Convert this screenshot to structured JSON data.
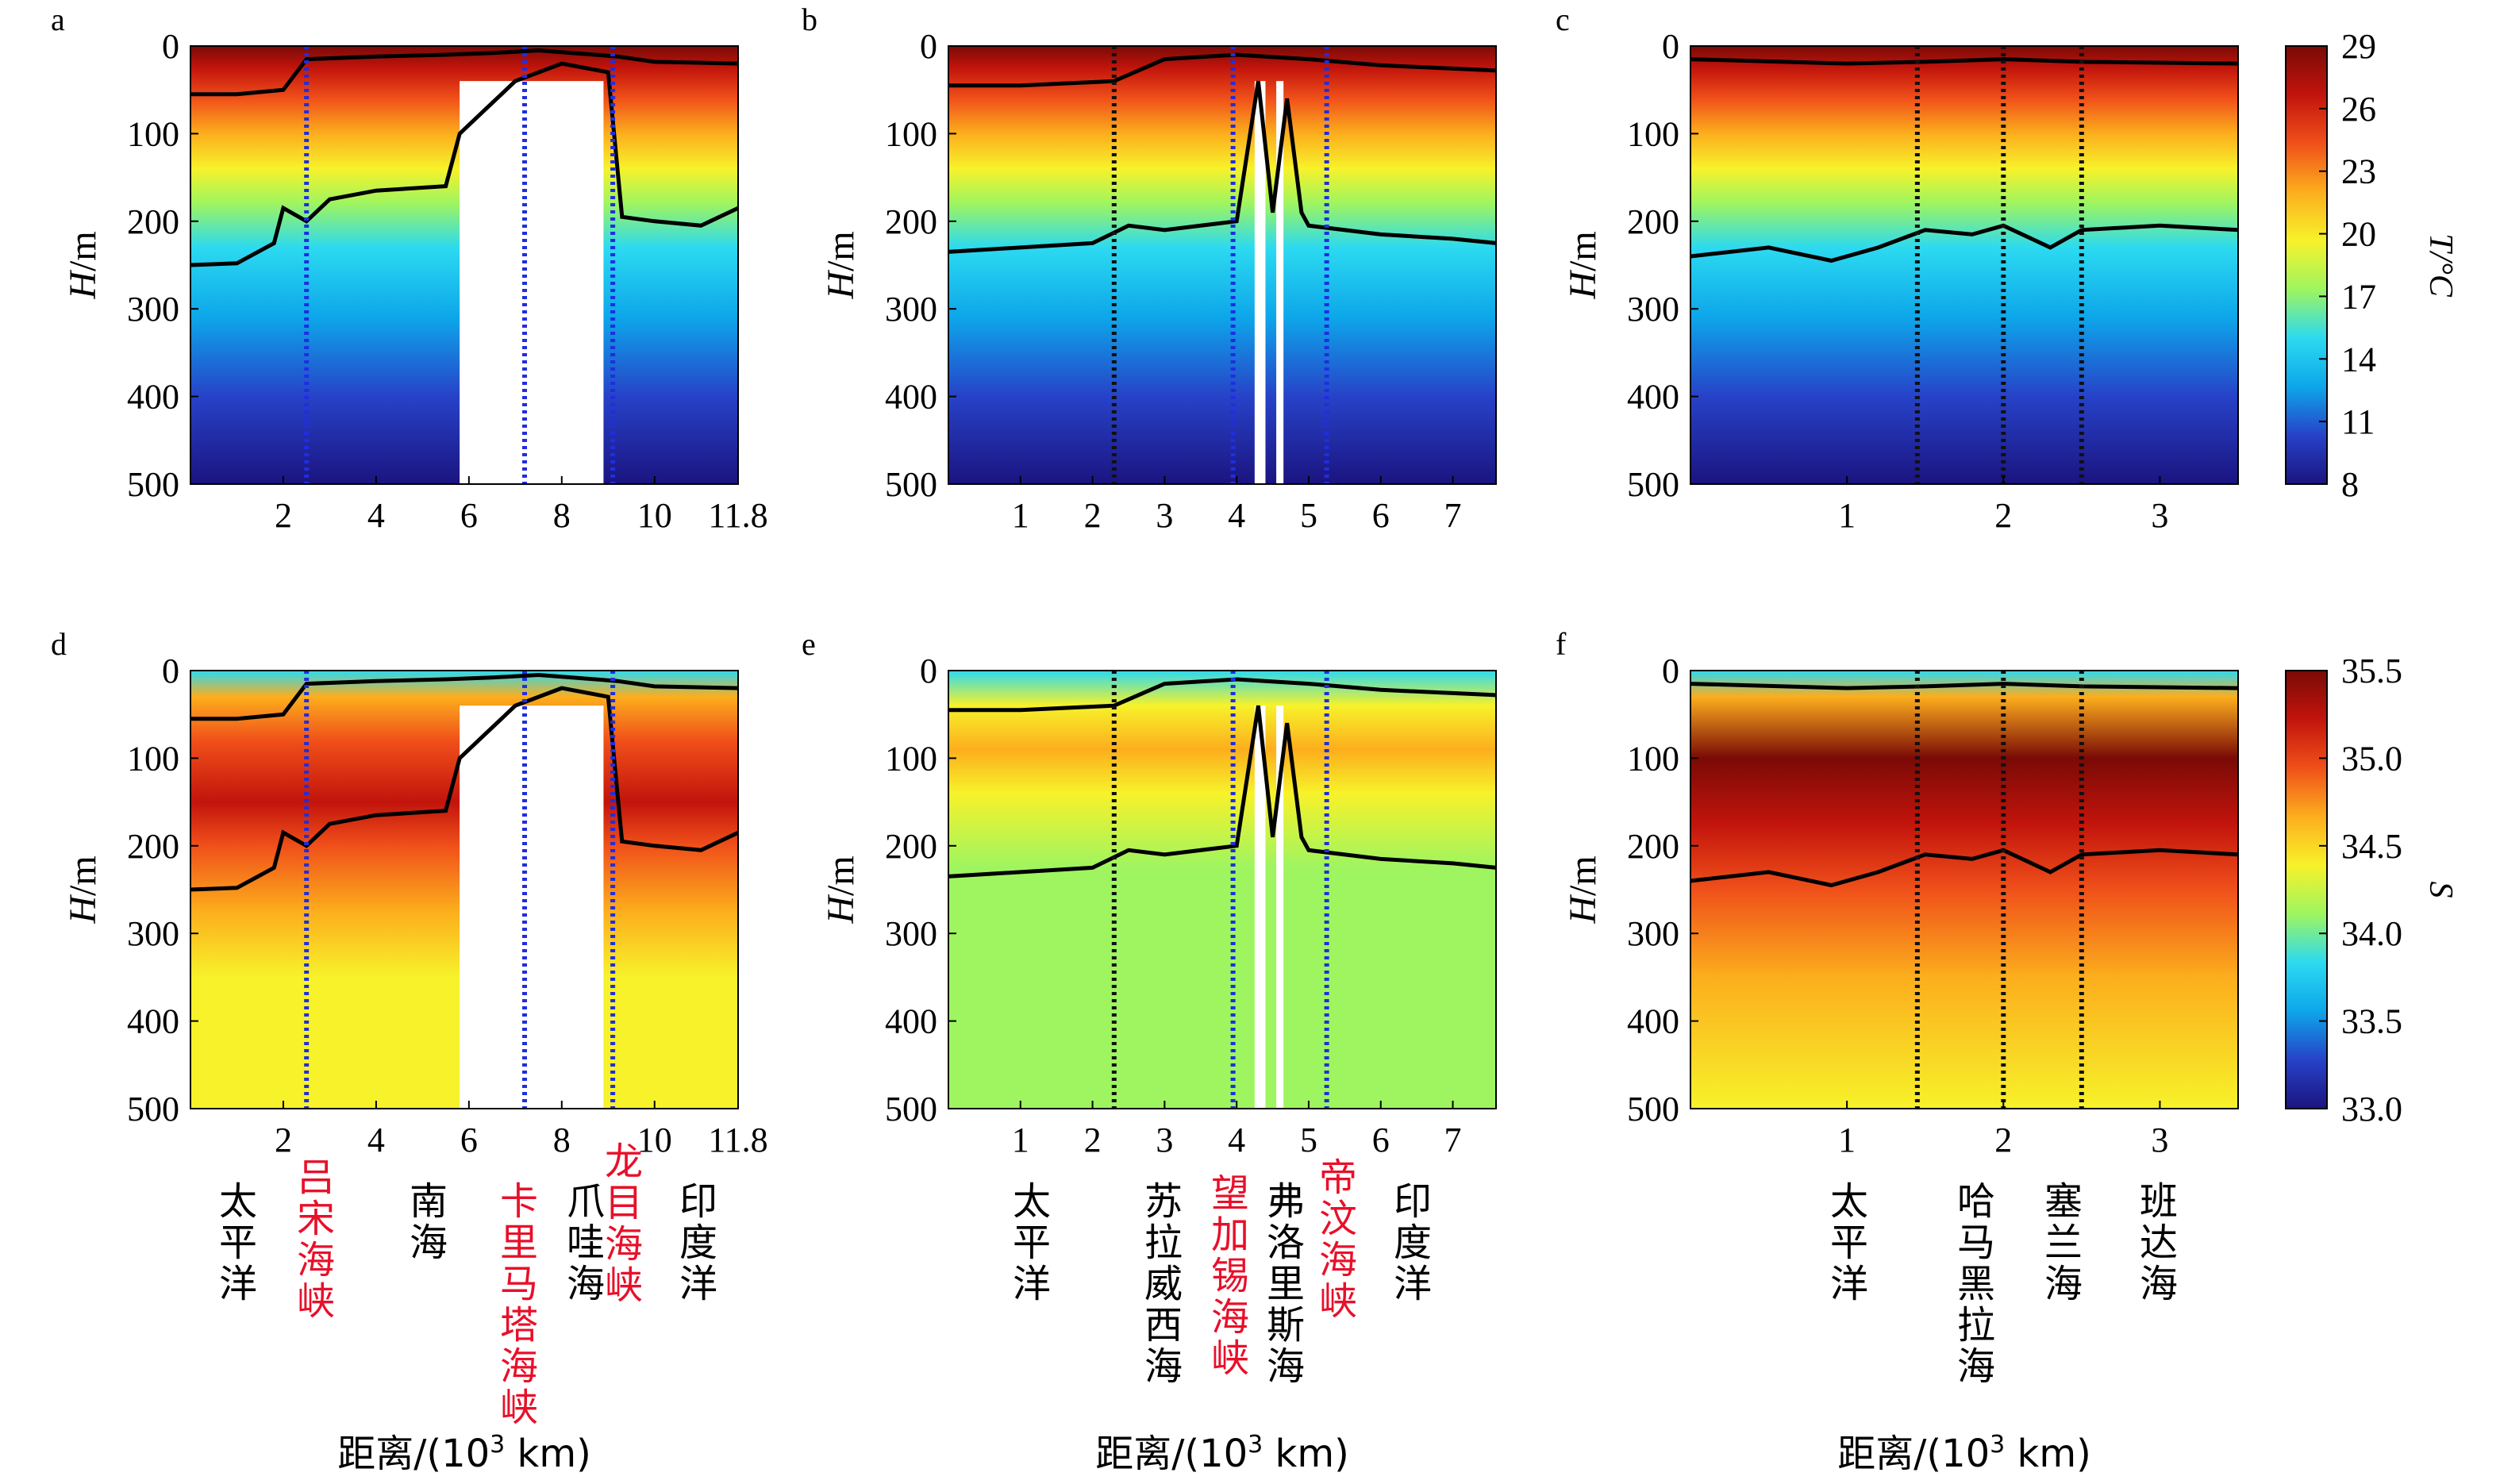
{
  "colors": {
    "temperature_scale": [
      "#1b1480",
      "#2742c8",
      "#0da6ea",
      "#2cdaf0",
      "#9ef560",
      "#f7f22a",
      "#fcae1d",
      "#f0501a",
      "#c2140c",
      "#7a0a06"
    ],
    "salinity_scale": [
      "#1b1480",
      "#2742c8",
      "#0da6ea",
      "#2cdaf0",
      "#9ef560",
      "#f7f22a",
      "#fcae1d",
      "#f0501a",
      "#c2140c",
      "#7a0a06"
    ],
    "strait_line": "#1f2ee0",
    "sea_line": "#111111",
    "isotherm": "#000000",
    "strait_text": "#e8102a"
  },
  "y_ticks": [
    "0",
    "100",
    "200",
    "300",
    "400",
    "500"
  ],
  "chart_data": [
    {
      "panel": "a",
      "type": "heatmap",
      "variable": "temperature",
      "ylabel": "H/m",
      "ylim": [
        500,
        0
      ],
      "xlim": [
        0,
        11.8
      ],
      "x_ticks": [
        "2",
        "4",
        "6",
        "8",
        "10",
        "11.8"
      ],
      "x_tick_values": [
        2,
        4,
        6,
        8,
        10,
        11.8
      ],
      "mld": [
        [
          0,
          55
        ],
        [
          1,
          55
        ],
        [
          2,
          50
        ],
        [
          2.5,
          15
        ],
        [
          4,
          12
        ],
        [
          5.5,
          10
        ],
        [
          6.5,
          8
        ],
        [
          7.5,
          5
        ],
        [
          9.2,
          12
        ],
        [
          10,
          18
        ],
        [
          11.8,
          20
        ]
      ],
      "thermocline": [
        [
          0,
          250
        ],
        [
          1,
          248
        ],
        [
          1.8,
          225
        ],
        [
          2,
          185
        ],
        [
          2.5,
          200
        ],
        [
          3,
          175
        ],
        [
          4,
          165
        ],
        [
          5.5,
          160
        ],
        [
          5.8,
          100
        ],
        [
          6.3,
          75
        ],
        [
          7,
          40
        ],
        [
          8,
          20
        ],
        [
          9,
          30
        ],
        [
          9.3,
          195
        ],
        [
          10,
          200
        ],
        [
          11,
          205
        ],
        [
          11.8,
          185
        ]
      ],
      "separators": [
        {
          "x": 2.5,
          "style": "strait"
        },
        {
          "x": 7.2,
          "style": "strait"
        },
        {
          "x": 9.1,
          "style": "strait"
        }
      ],
      "land": [
        [
          5.8,
          8.9
        ]
      ]
    },
    {
      "panel": "b",
      "type": "heatmap",
      "variable": "temperature",
      "ylabel": "H/m",
      "ylim": [
        500,
        0
      ],
      "xlim": [
        0,
        7.6
      ],
      "x_ticks": [
        "1",
        "2",
        "3",
        "4",
        "5",
        "6",
        "7"
      ],
      "x_tick_values": [
        1,
        2,
        3,
        4,
        5,
        6,
        7
      ],
      "mld": [
        [
          0,
          45
        ],
        [
          1,
          45
        ],
        [
          2.3,
          40
        ],
        [
          3,
          15
        ],
        [
          4,
          10
        ],
        [
          5,
          15
        ],
        [
          6,
          22
        ],
        [
          7.6,
          28
        ]
      ],
      "thermocline": [
        [
          0,
          235
        ],
        [
          1,
          230
        ],
        [
          2,
          225
        ],
        [
          2.5,
          205
        ],
        [
          3,
          210
        ],
        [
          4,
          200
        ],
        [
          4.3,
          40
        ],
        [
          4.5,
          190
        ],
        [
          4.7,
          60
        ],
        [
          4.9,
          190
        ],
        [
          5,
          205
        ],
        [
          6,
          215
        ],
        [
          7,
          220
        ],
        [
          7.6,
          225
        ]
      ],
      "separators": [
        {
          "x": 2.3,
          "style": "sea"
        },
        {
          "x": 3.95,
          "style": "strait"
        },
        {
          "x": 5.25,
          "style": "strait"
        }
      ],
      "land": [
        [
          4.25,
          4.4
        ],
        [
          4.55,
          4.65
        ]
      ]
    },
    {
      "panel": "c",
      "type": "heatmap",
      "variable": "temperature",
      "ylabel": "H/m",
      "ylim": [
        500,
        0
      ],
      "xlim": [
        0,
        3.5
      ],
      "x_ticks": [
        "1",
        "2",
        "3"
      ],
      "x_tick_values": [
        1,
        2,
        3
      ],
      "mld": [
        [
          0,
          15
        ],
        [
          1,
          20
        ],
        [
          1.5,
          18
        ],
        [
          2,
          15
        ],
        [
          2.5,
          18
        ],
        [
          3.5,
          20
        ]
      ],
      "thermocline": [
        [
          0,
          240
        ],
        [
          0.5,
          230
        ],
        [
          0.9,
          245
        ],
        [
          1.2,
          230
        ],
        [
          1.5,
          210
        ],
        [
          1.8,
          215
        ],
        [
          2,
          205
        ],
        [
          2.3,
          230
        ],
        [
          2.5,
          210
        ],
        [
          3,
          205
        ],
        [
          3.5,
          210
        ]
      ],
      "separators": [
        {
          "x": 1.45,
          "style": "sea"
        },
        {
          "x": 2.0,
          "style": "sea"
        },
        {
          "x": 2.5,
          "style": "sea"
        }
      ],
      "land": []
    },
    {
      "panel": "d",
      "type": "heatmap",
      "variable": "salinity",
      "ylabel": "H/m",
      "ylim": [
        500,
        0
      ],
      "xlim": [
        0,
        11.8
      ],
      "x_ticks": [
        "2",
        "4",
        "6",
        "8",
        "10",
        "11.8"
      ],
      "x_tick_values": [
        2,
        4,
        6,
        8,
        10,
        11.8
      ],
      "mld": [
        [
          0,
          55
        ],
        [
          1,
          55
        ],
        [
          2,
          50
        ],
        [
          2.5,
          15
        ],
        [
          4,
          12
        ],
        [
          5.5,
          10
        ],
        [
          6.5,
          8
        ],
        [
          7.5,
          5
        ],
        [
          9.2,
          12
        ],
        [
          10,
          18
        ],
        [
          11.8,
          20
        ]
      ],
      "thermocline": [
        [
          0,
          250
        ],
        [
          1,
          248
        ],
        [
          1.8,
          225
        ],
        [
          2,
          185
        ],
        [
          2.5,
          200
        ],
        [
          3,
          175
        ],
        [
          4,
          165
        ],
        [
          5.5,
          160
        ],
        [
          5.8,
          100
        ],
        [
          6.3,
          75
        ],
        [
          7,
          40
        ],
        [
          8,
          20
        ],
        [
          9,
          30
        ],
        [
          9.3,
          195
        ],
        [
          10,
          200
        ],
        [
          11,
          205
        ],
        [
          11.8,
          185
        ]
      ],
      "separators": [
        {
          "x": 2.5,
          "style": "strait"
        },
        {
          "x": 7.2,
          "style": "strait"
        },
        {
          "x": 9.1,
          "style": "strait"
        }
      ],
      "land": [
        [
          5.8,
          8.9
        ]
      ]
    },
    {
      "panel": "e",
      "type": "heatmap",
      "variable": "salinity",
      "ylabel": "H/m",
      "ylim": [
        500,
        0
      ],
      "xlim": [
        0,
        7.6
      ],
      "x_ticks": [
        "1",
        "2",
        "3",
        "4",
        "5",
        "6",
        "7"
      ],
      "x_tick_values": [
        1,
        2,
        3,
        4,
        5,
        6,
        7
      ],
      "mld": [
        [
          0,
          45
        ],
        [
          1,
          45
        ],
        [
          2.3,
          40
        ],
        [
          3,
          15
        ],
        [
          4,
          10
        ],
        [
          5,
          15
        ],
        [
          6,
          22
        ],
        [
          7.6,
          28
        ]
      ],
      "thermocline": [
        [
          0,
          235
        ],
        [
          1,
          230
        ],
        [
          2,
          225
        ],
        [
          2.5,
          205
        ],
        [
          3,
          210
        ],
        [
          4,
          200
        ],
        [
          4.3,
          40
        ],
        [
          4.5,
          190
        ],
        [
          4.7,
          60
        ],
        [
          4.9,
          190
        ],
        [
          5,
          205
        ],
        [
          6,
          215
        ],
        [
          7,
          220
        ],
        [
          7.6,
          225
        ]
      ],
      "separators": [
        {
          "x": 2.3,
          "style": "sea"
        },
        {
          "x": 3.95,
          "style": "strait"
        },
        {
          "x": 5.25,
          "style": "strait"
        }
      ],
      "land": [
        [
          4.25,
          4.4
        ],
        [
          4.55,
          4.65
        ]
      ]
    },
    {
      "panel": "f",
      "type": "heatmap",
      "variable": "salinity",
      "ylabel": "H/m",
      "ylim": [
        500,
        0
      ],
      "xlim": [
        0,
        3.5
      ],
      "x_ticks": [
        "1",
        "2",
        "3"
      ],
      "x_tick_values": [
        1,
        2,
        3
      ],
      "mld": [
        [
          0,
          15
        ],
        [
          1,
          20
        ],
        [
          1.5,
          18
        ],
        [
          2,
          15
        ],
        [
          2.5,
          18
        ],
        [
          3.5,
          20
        ]
      ],
      "thermocline": [
        [
          0,
          240
        ],
        [
          0.5,
          230
        ],
        [
          0.9,
          245
        ],
        [
          1.2,
          230
        ],
        [
          1.5,
          210
        ],
        [
          1.8,
          215
        ],
        [
          2,
          205
        ],
        [
          2.3,
          230
        ],
        [
          2.5,
          210
        ],
        [
          3,
          205
        ],
        [
          3.5,
          210
        ]
      ],
      "separators": [
        {
          "x": 1.45,
          "style": "sea"
        },
        {
          "x": 2.0,
          "style": "sea"
        },
        {
          "x": 2.5,
          "style": "sea"
        }
      ],
      "land": []
    }
  ],
  "colorbars": [
    {
      "label": "T/°C",
      "ticks": [
        "29",
        "26",
        "23",
        "20",
        "17",
        "14",
        "11",
        "8"
      ]
    },
    {
      "label": "S",
      "ticks": [
        "35.5",
        "35.0",
        "34.5",
        "34.0",
        "33.5",
        "33.0"
      ]
    }
  ],
  "region_labels": [
    [
      {
        "chars": [
          "太",
          "平",
          "洋"
        ],
        "strait": false
      },
      {
        "chars": [
          "吕",
          "宋",
          "海",
          "峡"
        ],
        "strait": true
      },
      {
        "chars": [
          "南",
          "海"
        ],
        "strait": false
      },
      {
        "chars": [
          "卡",
          "里",
          "马",
          "塔",
          "海",
          "峡"
        ],
        "strait": true
      },
      {
        "chars": [
          "爪",
          "哇",
          "海"
        ],
        "strait": false
      },
      {
        "chars": [
          "龙",
          "目",
          "海",
          "峡"
        ],
        "strait": true
      },
      {
        "chars": [
          "印",
          "度",
          "洋"
        ],
        "strait": false
      }
    ],
    [
      {
        "chars": [
          "太",
          "平",
          "洋"
        ],
        "strait": false
      },
      {
        "chars": [
          "苏",
          "拉",
          "威",
          "西",
          "海"
        ],
        "strait": false
      },
      {
        "chars": [
          "望",
          "加",
          "锡",
          "海",
          "峡"
        ],
        "strait": true
      },
      {
        "chars": [
          "弗",
          "洛",
          "里",
          "斯",
          "海"
        ],
        "strait": false
      },
      {
        "chars": [
          "帝",
          "汶",
          "海",
          "峡"
        ],
        "strait": true
      },
      {
        "chars": [
          "印",
          "度",
          "洋"
        ],
        "strait": false
      }
    ],
    [
      {
        "chars": [
          "太",
          "平",
          "洋"
        ],
        "strait": false
      },
      {
        "chars": [
          "哈",
          "马",
          "黑",
          "拉",
          "海"
        ],
        "strait": false
      },
      {
        "chars": [
          "塞",
          "兰",
          "海"
        ],
        "strait": false
      },
      {
        "chars": [
          "班",
          "达",
          "海"
        ],
        "strait": false
      }
    ]
  ],
  "xlabel": {
    "prefix": "距离/(10",
    "sup": "3",
    "suffix": " km)"
  }
}
